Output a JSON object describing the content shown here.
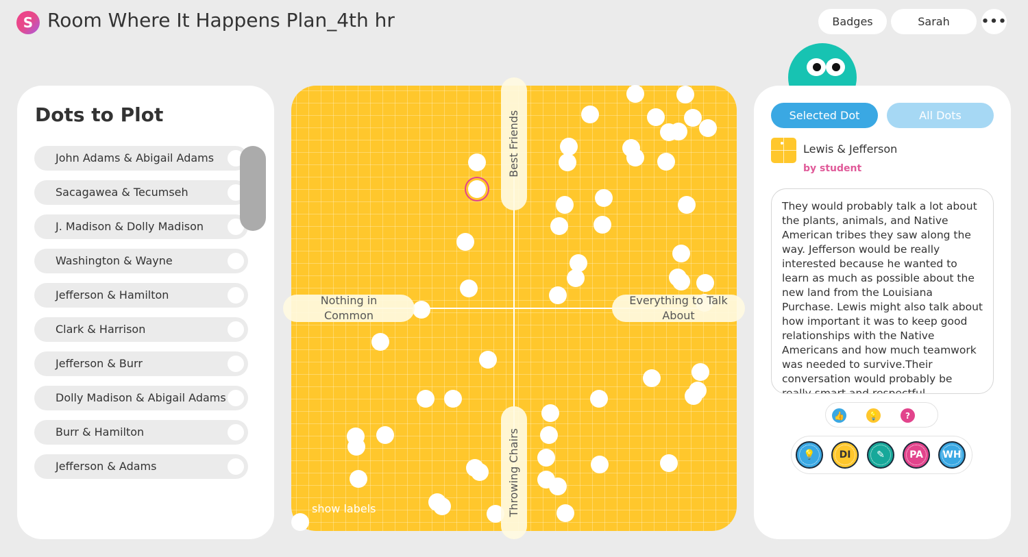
{
  "app": {
    "logo_letter": "S",
    "title": "Room Where It Happens Plan_4th hr"
  },
  "header": {
    "badges_label": "Badges",
    "user_label": "Sarah",
    "more_label": "•••"
  },
  "left_panel": {
    "title": "Dots to Plot",
    "items": [
      {
        "label": "John Adams & Abigail Adams"
      },
      {
        "label": "Sacagawea & Tecumseh"
      },
      {
        "label": "J. Madison & Dolly Madison"
      },
      {
        "label": "Washington & Wayne"
      },
      {
        "label": "Jefferson & Hamilton"
      },
      {
        "label": "Clark & Harrison"
      },
      {
        "label": "Jefferson & Burr"
      },
      {
        "label": "Dolly Madison & Abigail Adams"
      },
      {
        "label": "Burr & Hamilton"
      },
      {
        "label": "Jefferson & Adams"
      }
    ]
  },
  "plot": {
    "axis_top": "Best Friends",
    "axis_bottom": "Throwing Chairs",
    "axis_left": "Nothing in Common",
    "axis_right": "Everything to Talk About",
    "show_labels": "show labels",
    "colors": {
      "background": "#ffc72c",
      "dot": "#ffffff",
      "selected_ring": "#e2448c"
    },
    "selected_index": 17,
    "dots": [
      [
        0.772,
        0.018
      ],
      [
        0.885,
        0.02
      ],
      [
        0.67,
        0.065
      ],
      [
        0.818,
        0.07
      ],
      [
        0.902,
        0.073
      ],
      [
        0.935,
        0.095
      ],
      [
        0.847,
        0.105
      ],
      [
        0.869,
        0.103
      ],
      [
        0.623,
        0.137
      ],
      [
        0.763,
        0.14
      ],
      [
        0.772,
        0.162
      ],
      [
        0.62,
        0.172
      ],
      [
        0.842,
        0.17
      ],
      [
        0.417,
        0.172
      ],
      [
        0.702,
        0.253
      ],
      [
        0.614,
        0.267
      ],
      [
        0.888,
        0.268
      ],
      [
        0.417,
        0.232
      ],
      [
        0.602,
        0.315
      ],
      [
        0.699,
        0.313
      ],
      [
        0.39,
        0.35
      ],
      [
        0.875,
        0.377
      ],
      [
        0.644,
        0.398
      ],
      [
        0.639,
        0.432
      ],
      [
        0.868,
        0.43
      ],
      [
        0.875,
        0.44
      ],
      [
        0.929,
        0.443
      ],
      [
        0.398,
        0.455
      ],
      [
        0.598,
        0.47
      ],
      [
        0.928,
        0.488
      ],
      [
        0.293,
        0.503
      ],
      [
        0.2,
        0.575
      ],
      [
        0.442,
        0.615
      ],
      [
        0.918,
        0.643
      ],
      [
        0.809,
        0.657
      ],
      [
        0.913,
        0.685
      ],
      [
        0.903,
        0.697
      ],
      [
        0.302,
        0.703
      ],
      [
        0.363,
        0.703
      ],
      [
        0.69,
        0.703
      ],
      [
        0.581,
        0.735
      ],
      [
        0.21,
        0.785
      ],
      [
        0.578,
        0.785
      ],
      [
        0.145,
        0.787
      ],
      [
        0.146,
        0.81
      ],
      [
        0.573,
        0.835
      ],
      [
        0.692,
        0.85
      ],
      [
        0.848,
        0.847
      ],
      [
        0.413,
        0.858
      ],
      [
        0.423,
        0.868
      ],
      [
        0.573,
        0.885
      ],
      [
        0.15,
        0.883
      ],
      [
        0.598,
        0.9
      ],
      [
        0.327,
        0.935
      ],
      [
        0.338,
        0.945
      ],
      [
        0.459,
        0.962
      ],
      [
        0.615,
        0.96
      ],
      [
        0.02,
        0.98
      ]
    ]
  },
  "right_panel": {
    "tab_selected": "Selected Dot",
    "tab_all": "All Dots",
    "selected_name": "Lewis & Jefferson",
    "selected_author": "by student",
    "response": "They would probably talk a lot about the plants, animals, and Native American tribes they saw along the way. Jefferson would be really interested because he wanted to learn as much as possible about the new land from the Louisiana Purchase. Lewis might also talk about how important it was to keep good relationships with the Native Americans and how much teamwork was needed to survive.Their conversation would probably be really smart and respectful.",
    "reactions": {
      "like": "👍",
      "idea": "💡",
      "question": "?"
    },
    "badges": {
      "bulb": "💡",
      "di": "DI",
      "doc": "✎",
      "pa": "PA",
      "wh": "WH"
    }
  }
}
